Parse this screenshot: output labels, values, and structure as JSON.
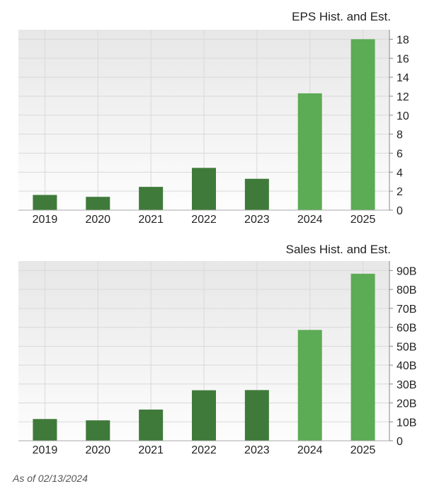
{
  "colors": {
    "historical": "#3f7a3a",
    "estimate": "#5cab55",
    "grid": "#d9d9d9",
    "plot_top": "#e7e7e7",
    "plot_bottom": "#fdfdfd"
  },
  "chart_data": [
    {
      "type": "bar",
      "title": "EPS Hist. and Est.",
      "categories": [
        "2019",
        "2020",
        "2021",
        "2022",
        "2023",
        "2024",
        "2025"
      ],
      "values": [
        1.6,
        1.4,
        2.45,
        4.45,
        3.3,
        12.3,
        18.0
      ],
      "estimate_from_index": 5,
      "ylim": [
        0,
        19
      ],
      "yticks": [
        0,
        2,
        4,
        6,
        8,
        10,
        12,
        14,
        16,
        18
      ],
      "ytick_labels": [
        "0",
        "2",
        "4",
        "6",
        "8",
        "10",
        "12",
        "14",
        "16",
        "18"
      ],
      "y_axis_side": "right",
      "grid": true
    },
    {
      "type": "bar",
      "title": "Sales Hist. and Est.",
      "categories": [
        "2019",
        "2020",
        "2021",
        "2022",
        "2023",
        "2024",
        "2025"
      ],
      "values": [
        11.5,
        10.8,
        16.5,
        26.7,
        26.8,
        58.6,
        88.3
      ],
      "estimate_from_index": 5,
      "ylim": [
        0,
        95
      ],
      "yticks": [
        0,
        10,
        20,
        30,
        40,
        50,
        60,
        70,
        80,
        90
      ],
      "ytick_labels": [
        "0",
        "10B",
        "20B",
        "30B",
        "40B",
        "50B",
        "60B",
        "70B",
        "80B",
        "90B"
      ],
      "y_axis_side": "right",
      "grid": true
    }
  ],
  "footer": {
    "as_of": "As of 02/13/2024"
  }
}
